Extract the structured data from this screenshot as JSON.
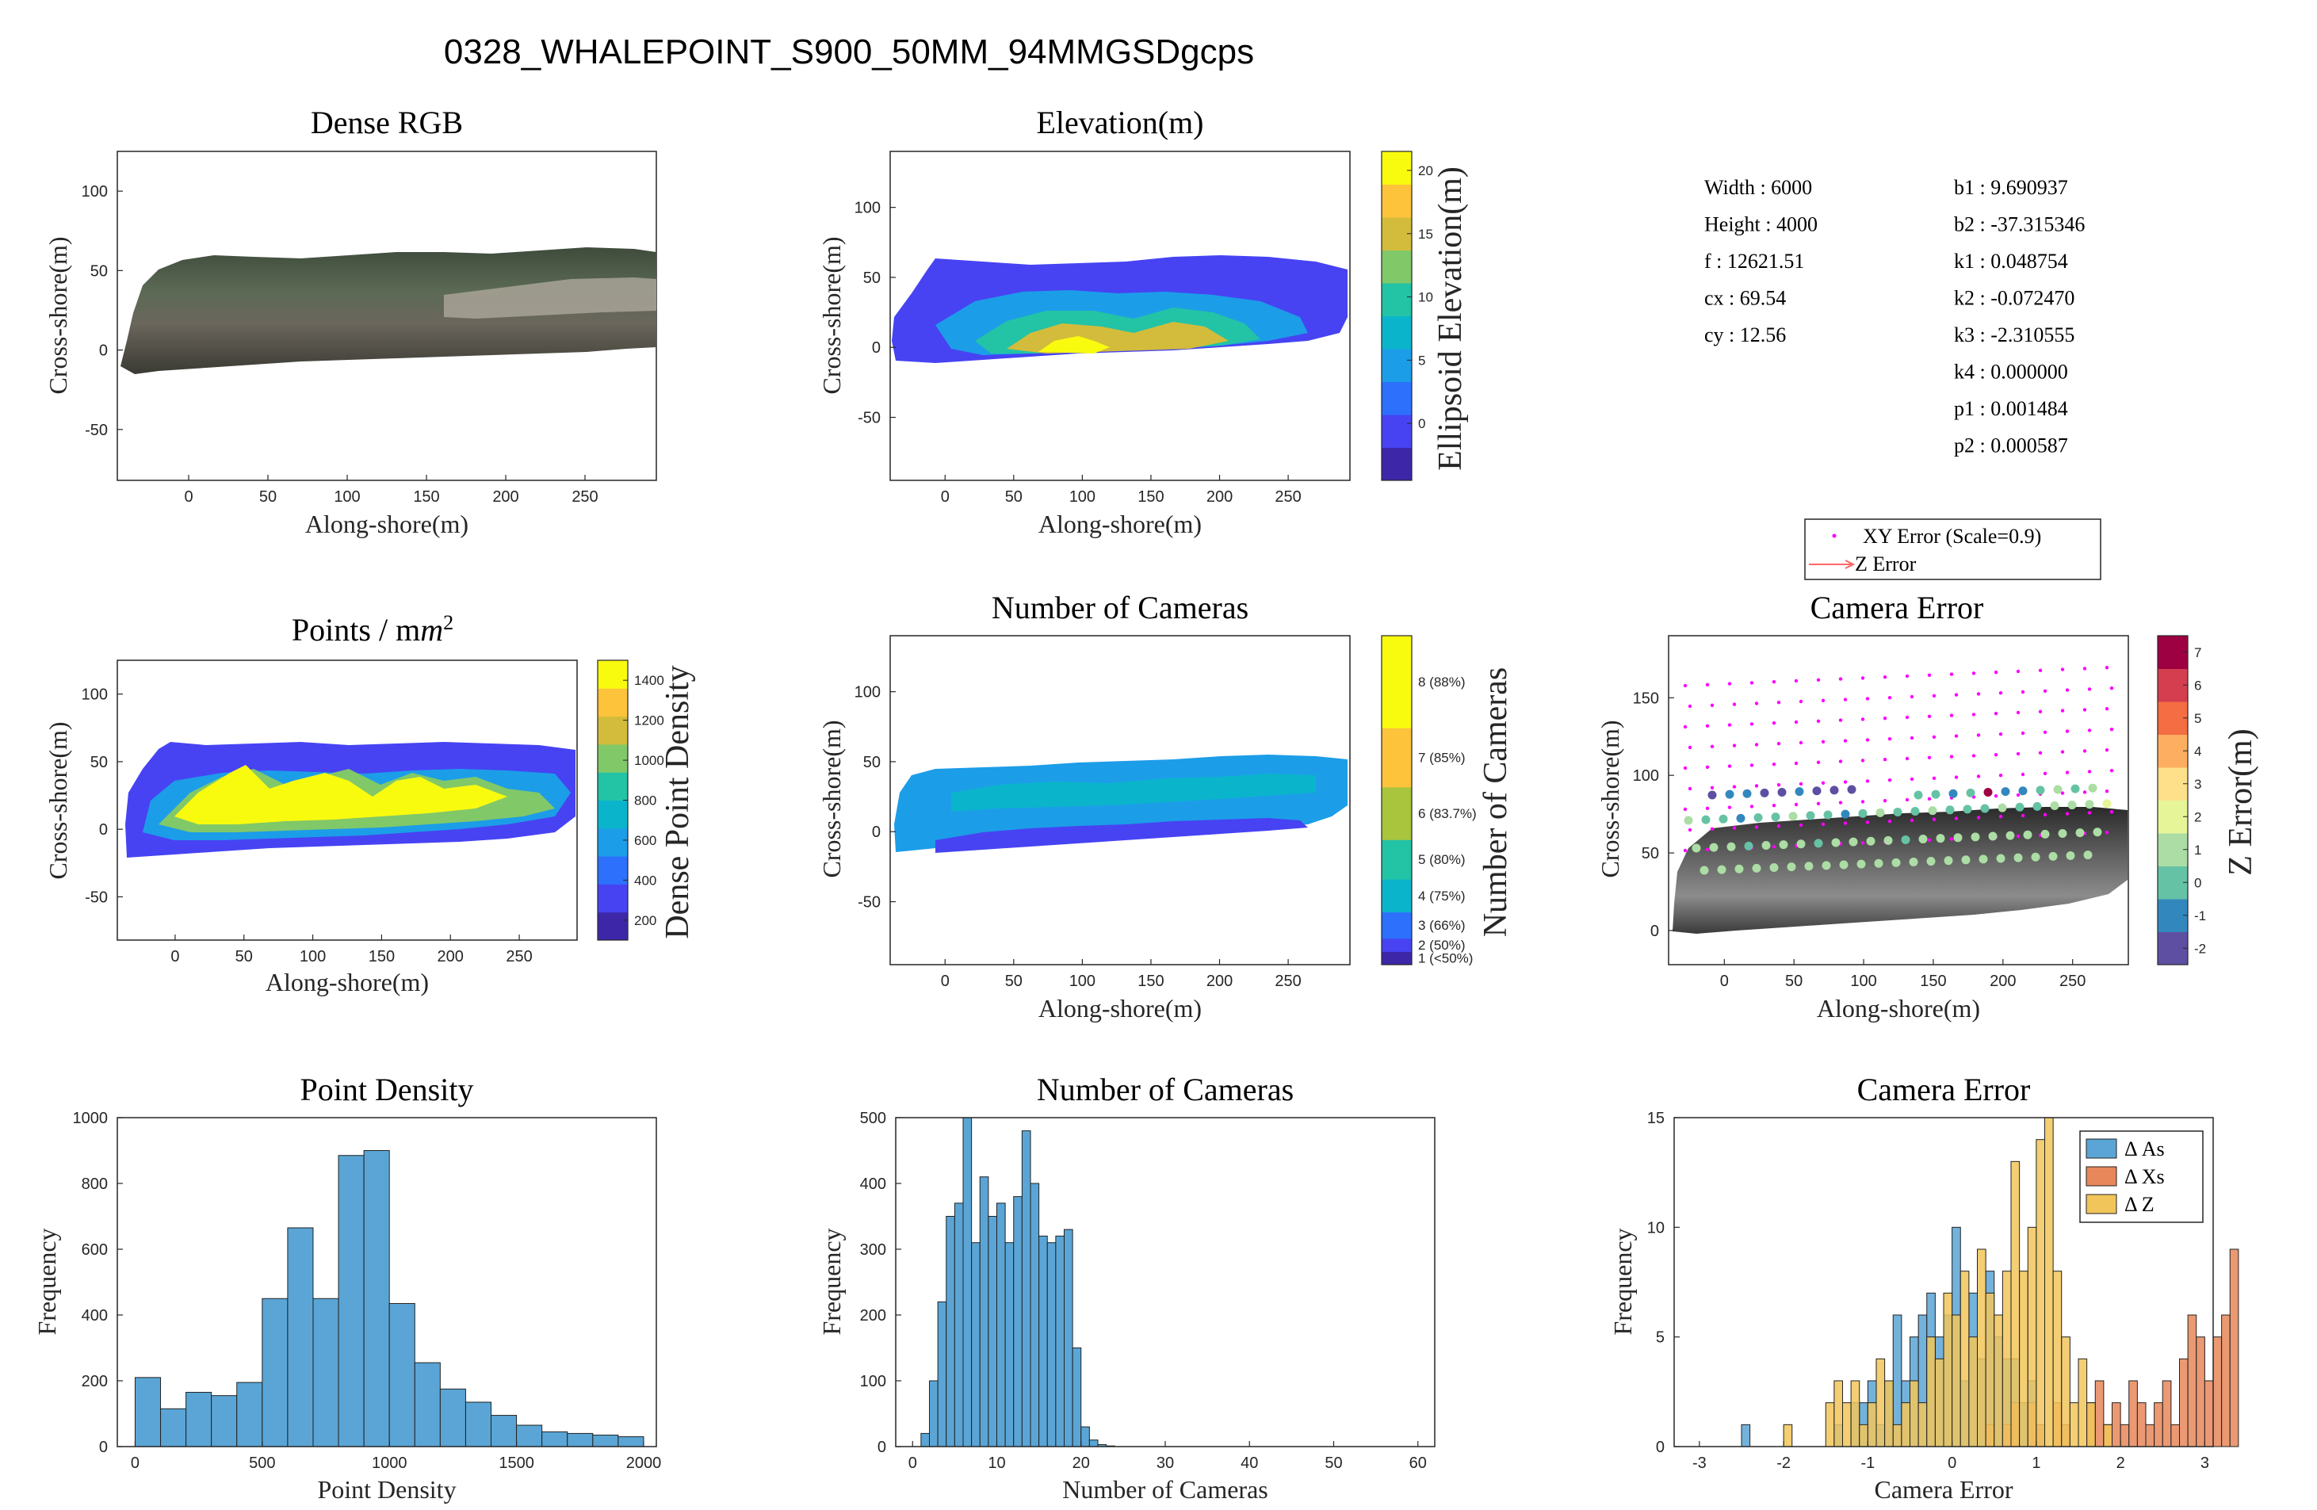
{
  "figure": {
    "suptitle": "0328_WHALEPOINT_S900_50MM_94MMGSDgcps"
  },
  "params": {
    "left": [
      "Width : 6000",
      "Height : 4000",
      "f : 12621.51",
      "cx : 69.54",
      "cy : 12.56"
    ],
    "right": [
      "b1 : 9.690937",
      "b2 : -37.315346",
      "k1 : 0.048754",
      "k2 : -0.072470",
      "k3 : -2.310555",
      "k4 : 0.000000",
      "p1 : 0.001484",
      "p2 : 0.000587"
    ]
  },
  "colors": {
    "histogram_blue": "#5aa5d5",
    "xs_orange": "#e8875a",
    "z_yellow": "#f2c55a",
    "parula": [
      "#3e26a8",
      "#4743f3",
      "#2d70fc",
      "#1c9de8",
      "#0ab5cc",
      "#23c3a6",
      "#81c868",
      "#d3bc3b",
      "#fcc33b",
      "#f9fb0f"
    ],
    "zerr": [
      "#5e4fa2",
      "#3288bd",
      "#66c2a5",
      "#abdda4",
      "#e6f598",
      "#fee08b",
      "#fdae61",
      "#f46d43",
      "#d53e4f",
      "#9e0142"
    ]
  },
  "chart_data": [
    {
      "id": "dense_rgb",
      "type": "heatmap",
      "title": "Dense RGB",
      "xlabel": "Along-shore(m)",
      "ylabel": "Cross-shore(m)",
      "xlim": [
        -45,
        295
      ],
      "ylim": [
        -82,
        125
      ],
      "xticks": [
        0,
        50,
        100,
        150,
        200,
        250
      ],
      "yticks": [
        -50,
        0,
        50,
        100
      ]
    },
    {
      "id": "elevation",
      "type": "heatmap",
      "title": "Elevation(m)",
      "xlabel": "Along-shore(m)",
      "ylabel": "Cross-shore(m)",
      "xlim": [
        -40,
        295
      ],
      "ylim": [
        -95,
        140
      ],
      "xticks": [
        0,
        50,
        100,
        150,
        200,
        250
      ],
      "yticks": [
        -50,
        0,
        50,
        100
      ],
      "colorbar": {
        "label": "Ellipsoid Elevation(m)",
        "ticks": [
          0,
          5,
          10,
          15,
          20
        ],
        "range": [
          -4.5,
          21.5
        ]
      }
    },
    {
      "id": "points_density_map",
      "type": "heatmap",
      "title": "Points / m",
      "title_sup": "2",
      "xlabel": "Along-shore(m)",
      "ylabel": "Cross-shore(m)",
      "xlim": [
        -42,
        292
      ],
      "ylim": [
        -82,
        125
      ],
      "xticks": [
        0,
        50,
        100,
        150,
        200,
        250
      ],
      "yticks": [
        -50,
        0,
        50,
        100
      ],
      "colorbar": {
        "label": "Dense Point Density",
        "ticks": [
          200,
          400,
          600,
          800,
          1000,
          1200,
          1400
        ],
        "range": [
          100,
          1500
        ]
      }
    },
    {
      "id": "num_cameras_map",
      "type": "heatmap",
      "title": "Number of Cameras",
      "xlabel": "Along-shore(m)",
      "ylabel": "Cross-shore(m)",
      "xlim": [
        -40,
        295
      ],
      "ylim": [
        -95,
        140
      ],
      "xticks": [
        0,
        50,
        100,
        150,
        200,
        250
      ],
      "yticks": [
        -50,
        0,
        50,
        100
      ],
      "colorbar": {
        "label": "Number of Cameras",
        "levels": [
          "1 (<50%)",
          "2 (50%)",
          "3 (66%)",
          "4 (75%)",
          "5 (80%)",
          "6 (83.7%)",
          "7 (85%)",
          "8 (88%)"
        ]
      }
    },
    {
      "id": "camera_error_map",
      "type": "scatter",
      "title": "Camera Error",
      "xlabel": "Along-shore(m)",
      "ylabel": "Cross-shore(m)",
      "xlim": [
        -40,
        290
      ],
      "ylim": [
        -22,
        190
      ],
      "xticks": [
        0,
        50,
        100,
        150,
        200,
        250
      ],
      "yticks": [
        0,
        50,
        100,
        150
      ],
      "legend": [
        "XY Error (Scale=0.9)",
        "Z Error"
      ],
      "colorbar": {
        "label": "Z Error(m)",
        "ticks": [
          -2,
          -1,
          0,
          1,
          2,
          3,
          4,
          5,
          6,
          7
        ],
        "range": [
          -2.5,
          7.5
        ]
      }
    },
    {
      "id": "point_density_hist",
      "type": "bar",
      "title": "Point Density",
      "xlabel": "Point Density",
      "ylabel": "Frequency",
      "xlim": [
        -70,
        2050
      ],
      "ylim": [
        0,
        1000
      ],
      "xticks": [
        0,
        500,
        1000,
        1500,
        2000
      ],
      "yticks": [
        0,
        200,
        400,
        600,
        800,
        1000
      ],
      "bin_width": 100,
      "bin_start": 0,
      "values": [
        210,
        115,
        165,
        155,
        195,
        450,
        665,
        450,
        885,
        900,
        435,
        255,
        175,
        135,
        95,
        65,
        45,
        40,
        35,
        30
      ]
    },
    {
      "id": "num_cameras_hist",
      "type": "bar",
      "title": "Number of Cameras",
      "xlabel": "Number of Cameras",
      "ylabel": "Frequency",
      "xlim": [
        -2,
        62
      ],
      "ylim": [
        0,
        500
      ],
      "xticks": [
        0,
        10,
        20,
        30,
        40,
        50,
        60
      ],
      "yticks": [
        0,
        100,
        200,
        300,
        400,
        500
      ],
      "bin_width": 1,
      "bin_start": 0,
      "values": [
        0,
        20,
        100,
        220,
        350,
        370,
        500,
        310,
        410,
        350,
        370,
        310,
        380,
        480,
        400,
        320,
        310,
        320,
        330,
        150,
        30,
        10,
        3,
        1,
        0
      ]
    },
    {
      "id": "camera_error_hist",
      "type": "bar",
      "title": "Camera Error",
      "xlabel": "Camera Error",
      "ylabel": "Frequency",
      "xlim": [
        -3.3,
        3.1
      ],
      "ylim": [
        0,
        15
      ],
      "xticks": [
        -3,
        -2,
        -1,
        0,
        1,
        2,
        3
      ],
      "yticks": [
        0,
        5,
        10,
        15
      ],
      "bin_width": 0.1,
      "series": [
        {
          "name": "Δ As",
          "color": "#5aa5d5",
          "start": -3.0,
          "values": [
            0,
            0,
            0,
            0,
            0,
            1,
            0,
            0,
            0,
            0,
            0,
            0,
            0,
            0,
            0,
            0,
            1,
            0,
            2,
            2,
            3,
            1,
            3,
            6,
            3,
            5,
            6,
            7,
            5,
            6,
            10,
            3,
            7,
            4,
            8,
            5,
            4,
            4,
            2,
            3,
            1,
            0,
            0,
            0,
            0,
            0,
            0,
            0,
            0,
            0,
            0,
            0,
            0,
            0,
            0,
            0,
            0,
            0,
            0,
            0
          ]
        },
        {
          "name": "Δ Xs",
          "color": "#e8875a",
          "start": -1.0,
          "values": [
            0,
            0,
            0,
            0,
            0,
            0,
            0,
            0,
            0,
            0,
            0,
            0,
            0,
            0,
            1,
            0,
            1,
            2,
            0,
            2,
            1,
            0,
            2,
            1,
            0,
            0,
            2,
            3,
            1,
            2,
            1,
            3,
            2,
            1,
            2,
            3,
            1,
            4,
            6,
            5,
            3,
            5,
            6,
            9
          ]
        },
        {
          "name": "Δ Z",
          "color": "#f2c55a",
          "start": -2.1,
          "values": [
            0,
            1,
            0,
            0,
            0,
            0,
            2,
            3,
            2,
            3,
            1,
            2,
            4,
            3,
            1,
            2,
            3,
            2,
            5,
            4,
            7,
            6,
            8,
            5,
            9,
            7,
            6,
            8,
            13,
            8,
            10,
            14,
            15,
            8,
            5,
            2,
            4,
            2,
            0,
            1
          ]
        }
      ],
      "legend": [
        "Δ As",
        "Δ Xs",
        "Δ Z"
      ]
    }
  ]
}
